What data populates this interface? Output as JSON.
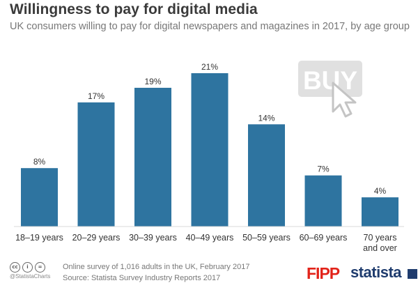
{
  "header": {
    "title": "Willingness to pay for digital media",
    "subtitle": "UK consumers willing to pay for digital newspapers and magazines in 2017, by age group"
  },
  "decoration": {
    "buy_button_text": "BUY",
    "icon": "cursor-arrow-icon"
  },
  "chart_data": {
    "type": "bar",
    "categories": [
      "18–19 years",
      "20–29 years",
      "30–39 years",
      "40–49 years",
      "50–59 years",
      "60–69 years",
      "70 years and over"
    ],
    "category_lines": [
      [
        "18–19 years"
      ],
      [
        "20–29 years"
      ],
      [
        "30–39 years"
      ],
      [
        "40–49 years"
      ],
      [
        "50–59 years"
      ],
      [
        "60–69 years"
      ],
      [
        "70 years",
        "and over"
      ]
    ],
    "values": [
      8,
      17,
      19,
      21,
      14,
      7,
      4
    ],
    "value_labels": [
      "8%",
      "17%",
      "19%",
      "21%",
      "14%",
      "7%",
      "4%"
    ],
    "unit": "%",
    "ylim": [
      0,
      21
    ],
    "grid": false,
    "bar_color": "#2e74a0"
  },
  "footer": {
    "source_line1": "Online survey of 1,016 adults in the UK, February 2017",
    "source_line2": "Source: Statista Survey Industry Reports 2017",
    "handle": "@StatistaCharts",
    "cc_icons": [
      "cc",
      "i",
      "="
    ],
    "logo_left": "FIPP",
    "logo_right": "statista"
  },
  "colors": {
    "bar": "#2e74a0",
    "title": "#3a3a3a",
    "subtitle": "#777777",
    "fipp_red": "#e2231a",
    "statista_navy": "#1f3c6e"
  }
}
